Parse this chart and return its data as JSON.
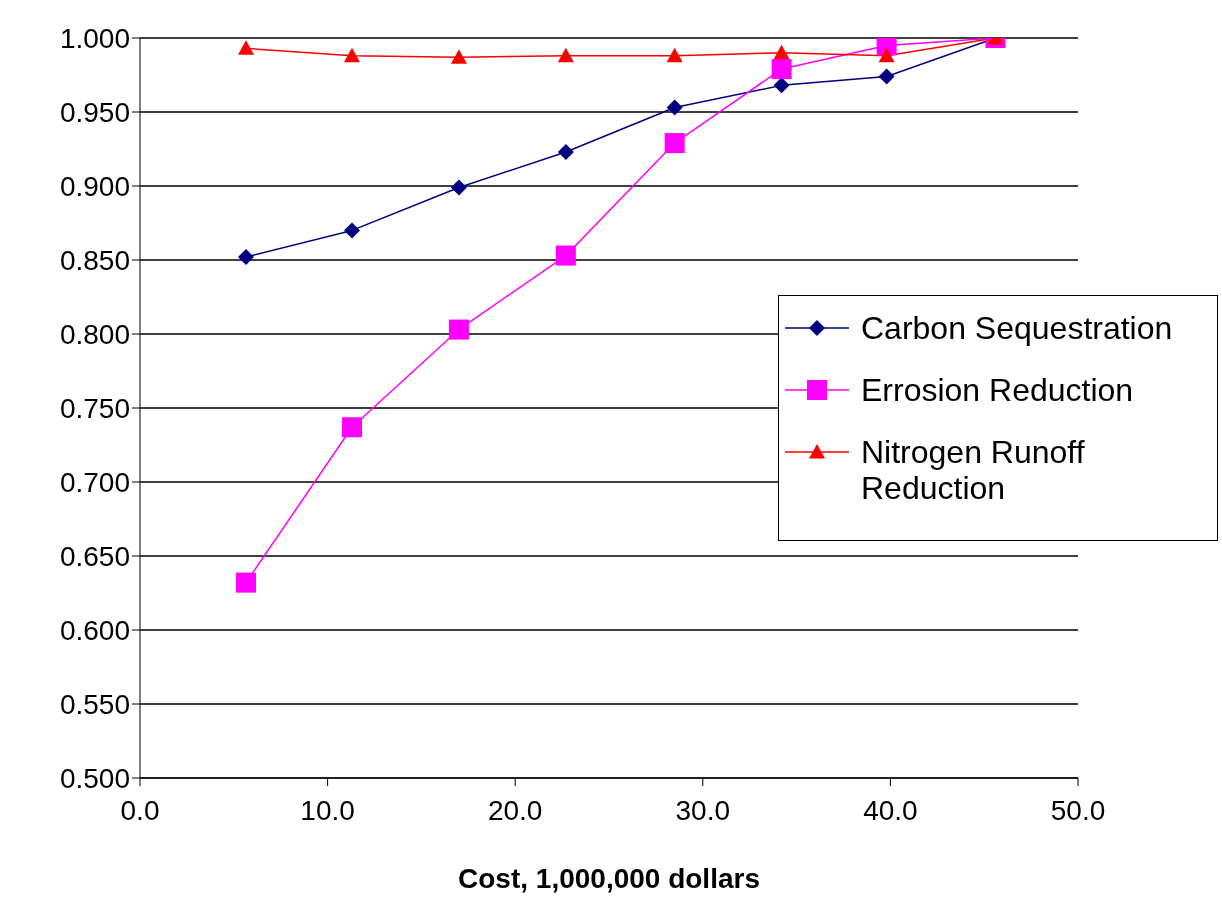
{
  "chart_data": {
    "type": "line",
    "xlabel": "Cost, 1,000,000 dollars",
    "x": [
      5.65,
      11.3,
      17.0,
      22.7,
      28.5,
      34.2,
      39.8,
      45.6
    ],
    "series": [
      {
        "name": "Carbon Sequestration",
        "color": "#000080",
        "marker": "diamond",
        "values": [
          0.852,
          0.87,
          0.899,
          0.923,
          0.953,
          0.968,
          0.974,
          1.0
        ]
      },
      {
        "name": "Errosion Reduction",
        "color": "#ff00ff",
        "marker": "square",
        "values": [
          0.632,
          0.737,
          0.803,
          0.853,
          0.929,
          0.979,
          0.995,
          1.0
        ]
      },
      {
        "name": "Nitrogen Runoff Reduction",
        "color": "#ff0000",
        "marker": "triangle",
        "values": [
          0.993,
          0.988,
          0.987,
          0.988,
          0.988,
          0.99,
          0.988,
          1.0
        ]
      }
    ],
    "xlim": [
      0,
      50
    ],
    "xticks": [
      {
        "value": 0,
        "label": "0.0"
      },
      {
        "value": 10,
        "label": "10.0"
      },
      {
        "value": 20,
        "label": "20.0"
      },
      {
        "value": 30,
        "label": "30.0"
      },
      {
        "value": 40,
        "label": "40.0"
      },
      {
        "value": 50,
        "label": "50.0"
      }
    ],
    "ylim": [
      0.5,
      1.0
    ],
    "yticks": [
      {
        "value": 0.5,
        "label": "0.500"
      },
      {
        "value": 0.55,
        "label": "0.550"
      },
      {
        "value": 0.6,
        "label": "0.600"
      },
      {
        "value": 0.65,
        "label": "0.650"
      },
      {
        "value": 0.7,
        "label": "0.700"
      },
      {
        "value": 0.75,
        "label": "0.750"
      },
      {
        "value": 0.8,
        "label": "0.800"
      },
      {
        "value": 0.85,
        "label": "0.850"
      },
      {
        "value": 0.9,
        "label": "0.900"
      },
      {
        "value": 0.95,
        "label": "0.950"
      },
      {
        "value": 1.0,
        "label": "1.000"
      }
    ],
    "grid": "y",
    "legend": "right",
    "line_style": "solid"
  }
}
